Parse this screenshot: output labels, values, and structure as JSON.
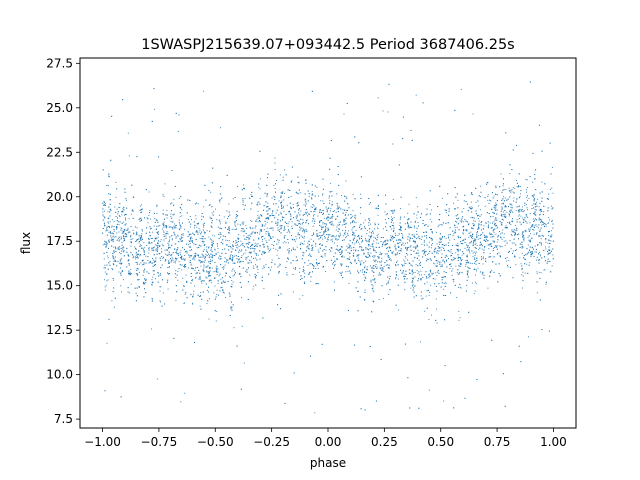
{
  "chart_data": {
    "type": "scatter",
    "title": "1SWASPJ215639.07+093442.5 Period 3687406.25s",
    "xlabel": "phase",
    "ylabel": "flux",
    "xlim": [
      -1.1,
      1.1
    ],
    "ylim": [
      7.0,
      27.8
    ],
    "x_ticks": [
      -1.0,
      -0.75,
      -0.5,
      -0.25,
      0.0,
      0.25,
      0.5,
      0.75,
      1.0
    ],
    "x_tick_labels": [
      "−1.00",
      "−0.75",
      "−0.50",
      "−0.25",
      "0.00",
      "0.25",
      "0.50",
      "0.75",
      "1.00"
    ],
    "y_ticks": [
      7.5,
      10.0,
      12.5,
      15.0,
      17.5,
      20.0,
      22.5,
      25.0,
      27.5
    ],
    "y_tick_labels": [
      "7.5",
      "10.0",
      "12.5",
      "15.0",
      "17.5",
      "20.0",
      "22.5",
      "25.0",
      "27.5"
    ],
    "grid": false,
    "marker_color": "#1f77b4",
    "envelope_x": [
      -1.0,
      -0.9,
      -0.8,
      -0.7,
      -0.6,
      -0.5,
      -0.4,
      -0.3,
      -0.2,
      -0.1,
      0.0,
      0.1,
      0.2,
      0.3,
      0.4,
      0.5,
      0.6,
      0.7,
      0.8,
      0.9,
      1.0
    ],
    "envelope_upper": [
      21.5,
      20.5,
      19.5,
      19.8,
      20.5,
      19.8,
      20.3,
      20.8,
      21.8,
      21.0,
      20.5,
      20.0,
      19.5,
      19.0,
      20.0,
      19.8,
      20.2,
      20.8,
      21.6,
      21.2,
      21.5
    ],
    "envelope_median": [
      17.8,
      17.6,
      16.8,
      17.5,
      17.0,
      16.5,
      17.2,
      17.8,
      18.5,
      18.0,
      17.9,
      17.5,
      16.8,
      17.6,
      16.8,
      16.6,
      17.3,
      17.9,
      18.6,
      18.2,
      17.8
    ],
    "envelope_lower": [
      15.0,
      15.2,
      14.3,
      15.0,
      14.5,
      13.8,
      14.5,
      15.2,
      15.6,
      15.2,
      15.0,
      15.0,
      14.2,
      15.0,
      14.0,
      13.6,
      14.8,
      15.2,
      15.8,
      15.2,
      15.0
    ],
    "outlier_range": [
      7.8,
      26.5
    ]
  }
}
